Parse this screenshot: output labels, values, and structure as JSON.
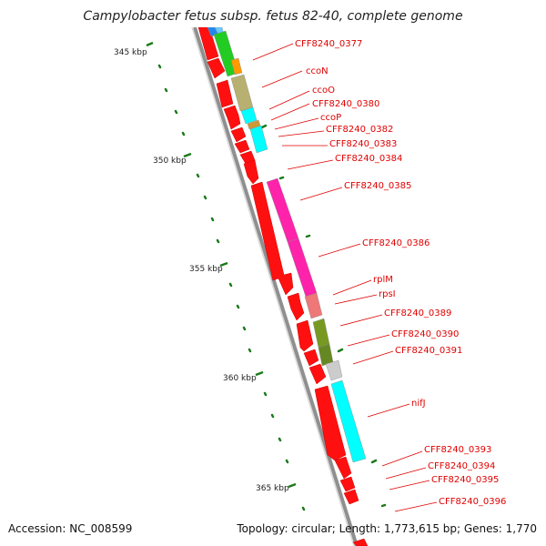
{
  "title": "Campylobacter fetus subsp. fetus 82-40, complete genome",
  "accession_text": "Accession: NC_008599",
  "summary_text": "Topology: circular; Length: 1,773,615 bp; Genes: 1,770",
  "ruler": [
    {
      "label": "345 kbp"
    },
    {
      "label": "350 kbp"
    },
    {
      "label": "355 kbp"
    },
    {
      "label": "360 kbp"
    },
    {
      "label": "365 kbp"
    }
  ],
  "gene_labels": [
    {
      "label": "CFF8240_0377"
    },
    {
      "label": "ccoN"
    },
    {
      "label": "ccoO"
    },
    {
      "label": "CFF8240_0380"
    },
    {
      "label": "ccoP"
    },
    {
      "label": "CFF8240_0382"
    },
    {
      "label": "CFF8240_0383"
    },
    {
      "label": "CFF8240_0384"
    },
    {
      "label": "CFF8240_0385"
    },
    {
      "label": "CFF8240_0386"
    },
    {
      "label": "rplM"
    },
    {
      "label": "rpsI"
    },
    {
      "label": "CFF8240_0389"
    },
    {
      "label": "CFF8240_0390"
    },
    {
      "label": "CFF8240_0391"
    },
    {
      "label": "nifJ"
    },
    {
      "label": "CFF8240_0393"
    },
    {
      "label": "CFF8240_0394"
    },
    {
      "label": "CFF8240_0395"
    },
    {
      "label": "CFF8240_0396"
    }
  ],
  "colors": {
    "label_red": "#e00000",
    "gene_red": "#ff0000",
    "backbone_gray": "#999999",
    "tick_green": "#1a7a1a"
  }
}
